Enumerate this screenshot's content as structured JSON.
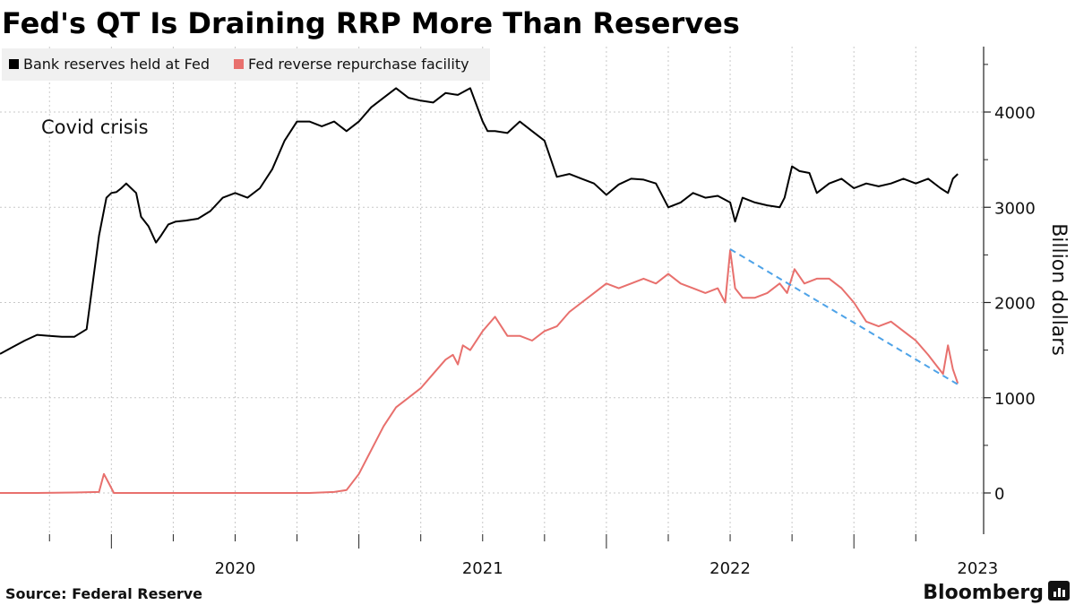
{
  "chart_data": {
    "type": "line",
    "title": "Fed's QT Is Draining RRP More Than Reserves",
    "ylabel": "Billion dollars",
    "ylim": [
      -400,
      4700
    ],
    "yticks": [
      0,
      1000,
      2000,
      3000,
      4000
    ],
    "x_range": [
      2019.55,
      2023.43
    ],
    "year_labels": [
      {
        "label": "2020",
        "x": 2020.0
      },
      {
        "label": "2021",
        "x": 2021.0
      },
      {
        "label": "2022",
        "x": 2022.0
      },
      {
        "label": "2023",
        "x": 2023.0
      }
    ],
    "annotation": "Covid crisis",
    "source": "Source: Federal Reserve",
    "brand": "Bloomberg",
    "colors": {
      "reserves": "#000000",
      "rrp": "#e8706d",
      "trend": "#4ea3e8",
      "grid": "#c8c8c8",
      "legend_bg": "#f0f0f0"
    },
    "series": [
      {
        "name": "Bank reserves held at Fed",
        "key": "reserves",
        "x": [
          2019.55,
          2019.6,
          2019.65,
          2019.7,
          2019.75,
          2019.8,
          2019.85,
          2019.9,
          2019.95,
          2019.98,
          2020.0,
          2020.02,
          2020.04,
          2020.06,
          2020.08,
          2020.1,
          2020.12,
          2020.15,
          2020.18,
          2020.2,
          2020.23,
          2020.26,
          2020.3,
          2020.35,
          2020.4,
          2020.45,
          2020.5,
          2020.55,
          2020.6,
          2020.65,
          2020.7,
          2020.75,
          2020.8,
          2020.85,
          2020.9,
          2020.95,
          2021.0,
          2021.05,
          2021.1,
          2021.15,
          2021.2,
          2021.25,
          2021.3,
          2021.35,
          2021.4,
          2021.45,
          2021.5,
          2021.52,
          2021.55,
          2021.6,
          2021.65,
          2021.7,
          2021.75,
          2021.8,
          2021.85,
          2021.9,
          2021.95,
          2022.0,
          2022.05,
          2022.1,
          2022.15,
          2022.2,
          2022.25,
          2022.3,
          2022.35,
          2022.4,
          2022.45,
          2022.5,
          2022.52,
          2022.55,
          2022.6,
          2022.65,
          2022.7,
          2022.72,
          2022.75,
          2022.78,
          2022.82,
          2022.85,
          2022.9,
          2022.95,
          2023.0,
          2023.05,
          2023.1,
          2023.15,
          2023.2,
          2023.25,
          2023.3,
          2023.35,
          2023.38,
          2023.4,
          2023.42
        ],
        "values": [
          1460,
          1530,
          1600,
          1660,
          1650,
          1640,
          1640,
          1720,
          2700,
          3100,
          3150,
          3160,
          3200,
          3250,
          3200,
          3150,
          2900,
          2800,
          2630,
          2700,
          2820,
          2850,
          2860,
          2880,
          2960,
          3100,
          3150,
          3100,
          3200,
          3400,
          3700,
          3900,
          3900,
          3850,
          3900,
          3800,
          3900,
          4050,
          4150,
          4250,
          4150,
          4120,
          4100,
          4200,
          4180,
          4250,
          3900,
          3800,
          3800,
          3780,
          3900,
          3800,
          3700,
          3320,
          3350,
          3300,
          3250,
          3130,
          3240,
          3300,
          3290,
          3250,
          3000,
          3050,
          3150,
          3100,
          3120,
          3050,
          2850,
          3100,
          3050,
          3020,
          3000,
          3100,
          3430,
          3380,
          3360,
          3150,
          3250,
          3300,
          3200,
          3250,
          3220,
          3250,
          3300,
          3250,
          3300,
          3200,
          3150,
          3300,
          3350
        ]
      },
      {
        "name": "Fed reverse repurchase facility",
        "key": "rrp",
        "x": [
          2019.55,
          2019.7,
          2019.85,
          2019.95,
          2019.97,
          2019.99,
          2020.01,
          2020.03,
          2020.1,
          2020.5,
          2020.8,
          2020.9,
          2020.95,
          2021.0,
          2021.05,
          2021.1,
          2021.15,
          2021.2,
          2021.25,
          2021.3,
          2021.35,
          2021.38,
          2021.4,
          2021.42,
          2021.45,
          2021.5,
          2021.55,
          2021.6,
          2021.65,
          2021.7,
          2021.75,
          2021.8,
          2021.85,
          2021.9,
          2021.95,
          2022.0,
          2022.05,
          2022.1,
          2022.15,
          2022.2,
          2022.25,
          2022.3,
          2022.35,
          2022.4,
          2022.45,
          2022.48,
          2022.5,
          2022.52,
          2022.55,
          2022.6,
          2022.65,
          2022.7,
          2022.73,
          2022.76,
          2022.8,
          2022.85,
          2022.9,
          2022.95,
          2023.0,
          2023.05,
          2023.1,
          2023.15,
          2023.2,
          2023.25,
          2023.3,
          2023.33,
          2023.36,
          2023.38,
          2023.4,
          2023.42
        ],
        "values": [
          0,
          0,
          5,
          10,
          200,
          100,
          0,
          0,
          0,
          0,
          0,
          10,
          30,
          200,
          450,
          700,
          900,
          1000,
          1100,
          1250,
          1400,
          1450,
          1350,
          1550,
          1500,
          1700,
          1850,
          1650,
          1650,
          1600,
          1700,
          1750,
          1900,
          2000,
          2100,
          2200,
          2150,
          2200,
          2250,
          2200,
          2300,
          2200,
          2150,
          2100,
          2150,
          2000,
          2550,
          2150,
          2050,
          2050,
          2100,
          2200,
          2100,
          2350,
          2200,
          2250,
          2250,
          2150,
          2000,
          1800,
          1750,
          1800,
          1700,
          1600,
          1450,
          1350,
          1250,
          1550,
          1300,
          1150
        ]
      },
      {
        "name": "trend",
        "key": "trend",
        "x": [
          2022.5,
          2023.42
        ],
        "values": [
          2560,
          1140
        ]
      }
    ]
  },
  "legend": [
    {
      "label": "Bank reserves held at Fed",
      "color": "#000000"
    },
    {
      "label": "Fed reverse repurchase facility",
      "color": "#e8706d"
    }
  ]
}
